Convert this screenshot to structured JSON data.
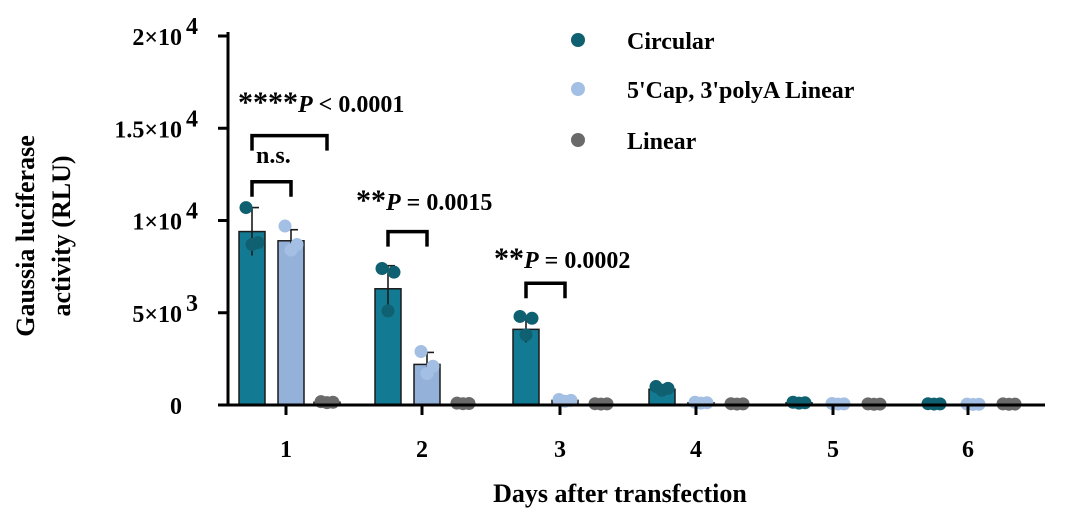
{
  "colors": {
    "Circular": {
      "bar": "#137a93",
      "dot": "#0f6070"
    },
    "5'Cap, 3'polyA Linear": {
      "bar": "#94b2d9",
      "dot": "#a4bfe4"
    },
    "Linear": {
      "bar": "#707070",
      "dot": "#6a6a6a"
    }
  },
  "chart_data": {
    "type": "bar",
    "xlabel": "Days after transfection",
    "ylabel_line1": "Gaussia luciferase",
    "ylabel_line2": "activity (RLU)",
    "categories": [
      "1",
      "2",
      "3",
      "4",
      "5",
      "6"
    ],
    "ylim": [
      0,
      20000
    ],
    "yticks": [
      {
        "value": 0,
        "mantissa": "0",
        "exponent": ""
      },
      {
        "value": 5000,
        "mantissa": "5×10",
        "exponent": "3"
      },
      {
        "value": 10000,
        "mantissa": "1×10",
        "exponent": "4"
      },
      {
        "value": 15000,
        "mantissa": "1.5×10",
        "exponent": "4"
      },
      {
        "value": 20000,
        "mantissa": "2×10",
        "exponent": "4"
      }
    ],
    "legend_position": "top-right",
    "series": [
      {
        "name": "Circular",
        "values": [
          9400,
          6300,
          4100,
          850,
          120,
          60
        ],
        "errors": [
          1300,
          1250,
          700,
          150,
          40,
          20
        ],
        "points": [
          [
            10700,
            8800,
            8700
          ],
          [
            7400,
            7200,
            5100
          ],
          [
            4800,
            4700,
            3800
          ],
          [
            1000,
            900,
            800
          ],
          [
            150,
            120,
            100
          ],
          [
            70,
            60,
            50
          ]
        ]
      },
      {
        "name": "5'Cap, 3'polyA Linear",
        "values": [
          8900,
          2200,
          250,
          120,
          60,
          40
        ],
        "errors": [
          600,
          650,
          40,
          30,
          20,
          15
        ],
        "points": [
          [
            9700,
            8700,
            8400
          ],
          [
            2900,
            2100,
            1700
          ],
          [
            300,
            250,
            200
          ],
          [
            150,
            120,
            100
          ],
          [
            80,
            60,
            50
          ],
          [
            50,
            40,
            30
          ]
        ]
      },
      {
        "name": "Linear",
        "values": [
          150,
          80,
          60,
          60,
          50,
          50
        ],
        "errors": [
          20,
          15,
          10,
          10,
          10,
          10
        ],
        "points": [
          [
            180,
            150,
            130
          ],
          [
            100,
            80,
            70
          ],
          [
            70,
            60,
            50
          ],
          [
            70,
            60,
            50
          ],
          [
            60,
            50,
            40
          ],
          [
            60,
            50,
            40
          ]
        ]
      }
    ],
    "significance": [
      {
        "stars": "****",
        "p_symbol": "P",
        "p_rest": " < 0.0001",
        "category": "1",
        "from_series": 0,
        "to_series": 2,
        "bracket_value": 14600
      },
      {
        "stars": "n.s.",
        "p_symbol": "",
        "p_rest": "",
        "category": "1",
        "from_series": 0,
        "to_series": 1,
        "bracket_value": 12100
      },
      {
        "stars": "**",
        "p_symbol": "P",
        "p_rest": " = 0.0015",
        "category": "2",
        "from_series": 0,
        "to_series": 1,
        "bracket_value": 9400
      },
      {
        "stars": "**",
        "p_symbol": "P",
        "p_rest": " = 0.0002",
        "category": "3",
        "from_series": 0,
        "to_series": 1,
        "bracket_value": 6600
      }
    ]
  }
}
